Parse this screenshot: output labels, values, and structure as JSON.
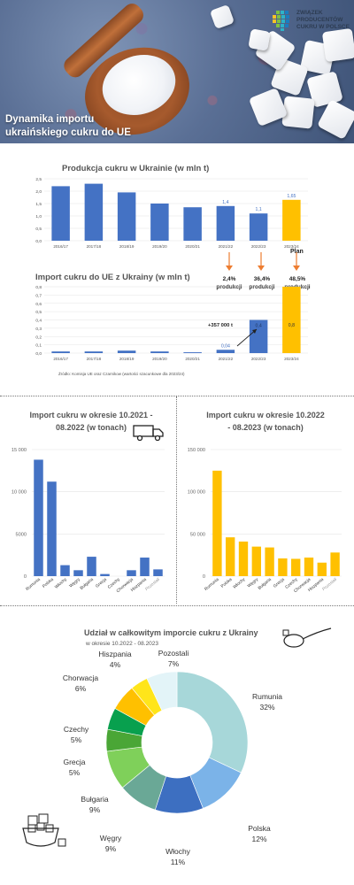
{
  "header": {
    "title_line1": "Dynamika importu",
    "title_line2": "ukraińskiego cukru do UE",
    "logo_line1": "ZWIĄZEK",
    "logo_line2": "PRODUCENTÓW",
    "logo_line3": "CUKRU W POLSCE"
  },
  "production": {
    "title": "Produkcja cukru w Ukrainie (w mln t)",
    "plan_label": "Plan"
  },
  "import": {
    "title": "Import cukru do UE z Ukrainy (w mln t)",
    "pct": [
      {
        "value": "2,4%",
        "label": "produkcji"
      },
      {
        "value": "36,4%",
        "label": "produkcji"
      },
      {
        "value": "48,5%",
        "label": "produkcji"
      }
    ],
    "annotation": "+357 000 t",
    "source": "Źródło: Komisja UE oraz Czarnikow (wartości szacunkowe dla 2023/24)"
  },
  "mid_left": {
    "title_line1": "Import cukru w okresie 10.2021 -",
    "title_line2": "08.2022 (w tonach)"
  },
  "mid_right": {
    "title_line1": "Import cukru w okresie 10.2022",
    "title_line2": "- 08.2023 (w tonach)"
  },
  "pie": {
    "title": "Udział w całkowitym imporcie cukru z Ukrainy",
    "subtitle": "w okresie 10.2022 - 08.2023"
  },
  "colors": {
    "blue": "#4472c4",
    "gold": "#ffc000",
    "arrow": "#ed7d31"
  },
  "chart_data": [
    {
      "type": "bar",
      "title": "Produkcja cukru w Ukrainie (w mln t)",
      "categories": [
        "2016/17",
        "2017/18",
        "2018/19",
        "2019/20",
        "2020/21",
        "2021/22",
        "2022/23",
        "2023/24"
      ],
      "values": [
        2.2,
        2.3,
        1.95,
        1.5,
        1.35,
        1.4,
        1.1,
        1.65
      ],
      "labels": [
        "",
        "",
        "",
        "",
        "",
        "1,4",
        "1,1",
        "1,65"
      ],
      "highlight_last": true,
      "yticks": [
        "0,0",
        "0,5",
        "1,0",
        "1,5",
        "2,0",
        "2,5"
      ],
      "ylim": [
        0,
        2.5
      ]
    },
    {
      "type": "bar",
      "title": "Import cukru do UE z Ukrainy (w mln t)",
      "categories": [
        "2016/17",
        "2017/18",
        "2018/19",
        "2019/20",
        "2020/21",
        "2021/22",
        "2022/23",
        "2023/24"
      ],
      "values": [
        0.02,
        0.02,
        0.03,
        0.02,
        0.01,
        0.04,
        0.4,
        0.8
      ],
      "labels": [
        "",
        "",
        "",
        "",
        "",
        "0,04",
        "0,4",
        "0,8"
      ],
      "highlight_last": true,
      "yticks": [
        "0,0",
        "0,1",
        "0,2",
        "0,3",
        "0,4",
        "0,5",
        "0,6",
        "0,7",
        "0,8"
      ],
      "ylim": [
        0,
        0.8
      ]
    },
    {
      "type": "bar",
      "title": "Import cukru w okresie 10.2021 - 08.2022 (w tonach)",
      "categories": [
        "Rumunia",
        "Polska",
        "Włochy",
        "Węgry",
        "Bułgaria",
        "Grecja",
        "Czechy",
        "Chorwacja",
        "Hiszpania",
        "Pozostali"
      ],
      "values": [
        13800,
        11200,
        1300,
        700,
        2300,
        250,
        0,
        700,
        2200,
        800
      ],
      "yticks": [
        "0",
        "5000",
        "10 000",
        "15 000"
      ],
      "ylim": [
        0,
        15000
      ]
    },
    {
      "type": "bar",
      "title": "Import cukru w okresie 10.2022 - 08.2023 (w tonach)",
      "categories": [
        "Rumunia",
        "Polska",
        "Włochy",
        "Węgry",
        "Bułgaria",
        "Grecja",
        "Czechy",
        "Chorwacja",
        "Hiszpania",
        "Pozostali"
      ],
      "values": [
        125000,
        46000,
        41000,
        35000,
        34000,
        21000,
        20500,
        22000,
        16000,
        28000
      ],
      "yticks": [
        "0",
        "50 000",
        "100 000",
        "150 000"
      ],
      "ylim": [
        0,
        150000
      ]
    },
    {
      "type": "pie",
      "title": "Udział w całkowitym imporcie cukru z Ukrainy",
      "subtitle": "w okresie 10.2022 - 08.2023",
      "categories": [
        "Rumunia",
        "Polska",
        "Włochy",
        "Węgry",
        "Bułgaria",
        "Grecja",
        "Czechy",
        "Chorwacja",
        "Hiszpania",
        "Pozostali"
      ],
      "values": [
        32,
        12,
        11,
        9,
        9,
        5,
        5,
        6,
        4,
        7
      ],
      "labels": [
        "32%",
        "12%",
        "11%",
        "9%",
        "9%",
        "5%",
        "5%",
        "6%",
        "4%",
        "7%"
      ],
      "colors": [
        "#a7d7d9",
        "#7bb3e8",
        "#3d6fc1",
        "#6aa896",
        "#7fd05a",
        "#4aa636",
        "#08a04e",
        "#ffc000",
        "#ffe51a",
        "#e3f4f8"
      ]
    }
  ]
}
